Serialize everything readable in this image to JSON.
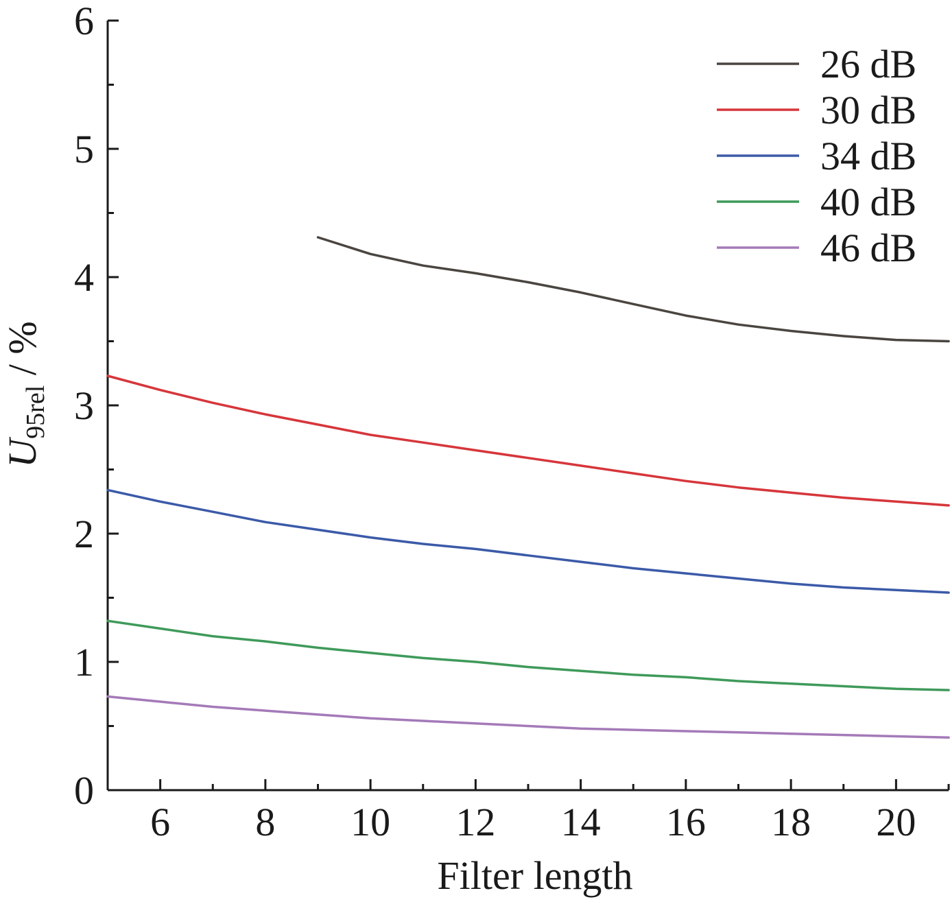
{
  "chart_data": {
    "type": "line",
    "xlabel": "Filter length",
    "ylabel": {
      "symbol": "U",
      "subscript": "95rel",
      "unit": " / %"
    },
    "xlim": [
      5,
      21
    ],
    "ylim": [
      0,
      6
    ],
    "x_ticks": [
      6,
      8,
      10,
      12,
      14,
      16,
      18,
      20
    ],
    "x_tick_labels": [
      "6",
      "8",
      "10",
      "12",
      "14",
      "16",
      "18",
      "20"
    ],
    "y_ticks": [
      0,
      1,
      2,
      3,
      4,
      5,
      6
    ],
    "y_tick_labels": [
      "0",
      "1",
      "2",
      "3",
      "4",
      "5",
      "6"
    ],
    "grid": false,
    "legend_position": "top-right",
    "series": [
      {
        "name": "26 dB",
        "color": "#4a4540",
        "x": [
          9,
          10,
          11,
          12,
          13,
          14,
          15,
          16,
          17,
          18,
          19,
          20,
          21
        ],
        "y": [
          4.31,
          4.18,
          4.09,
          4.03,
          3.96,
          3.88,
          3.79,
          3.7,
          3.63,
          3.58,
          3.54,
          3.51,
          3.5
        ]
      },
      {
        "name": "30 dB",
        "color": "#d6363b",
        "x": [
          5,
          6,
          7,
          8,
          9,
          10,
          11,
          12,
          13,
          14,
          15,
          16,
          17,
          18,
          19,
          20,
          21
        ],
        "y": [
          3.23,
          3.12,
          3.02,
          2.93,
          2.85,
          2.77,
          2.71,
          2.65,
          2.59,
          2.53,
          2.47,
          2.41,
          2.36,
          2.32,
          2.28,
          2.25,
          2.22
        ]
      },
      {
        "name": "34 dB",
        "color": "#3b5aa8",
        "x": [
          5,
          6,
          7,
          8,
          9,
          10,
          11,
          12,
          13,
          14,
          15,
          16,
          17,
          18,
          19,
          20,
          21
        ],
        "y": [
          2.34,
          2.25,
          2.17,
          2.09,
          2.03,
          1.97,
          1.92,
          1.88,
          1.83,
          1.78,
          1.73,
          1.69,
          1.65,
          1.61,
          1.58,
          1.56,
          1.54
        ]
      },
      {
        "name": "40 dB",
        "color": "#3f9a5a",
        "x": [
          5,
          6,
          7,
          8,
          9,
          10,
          11,
          12,
          13,
          14,
          15,
          16,
          17,
          18,
          19,
          20,
          21
        ],
        "y": [
          1.32,
          1.26,
          1.2,
          1.16,
          1.11,
          1.07,
          1.03,
          1.0,
          0.96,
          0.93,
          0.9,
          0.88,
          0.85,
          0.83,
          0.81,
          0.79,
          0.78
        ]
      },
      {
        "name": "46 dB",
        "color": "#a47ab8",
        "x": [
          5,
          6,
          7,
          8,
          9,
          10,
          11,
          12,
          13,
          14,
          15,
          16,
          17,
          18,
          19,
          20,
          21
        ],
        "y": [
          0.73,
          0.69,
          0.65,
          0.62,
          0.59,
          0.56,
          0.54,
          0.52,
          0.5,
          0.48,
          0.47,
          0.46,
          0.45,
          0.44,
          0.43,
          0.42,
          0.41
        ]
      }
    ]
  }
}
